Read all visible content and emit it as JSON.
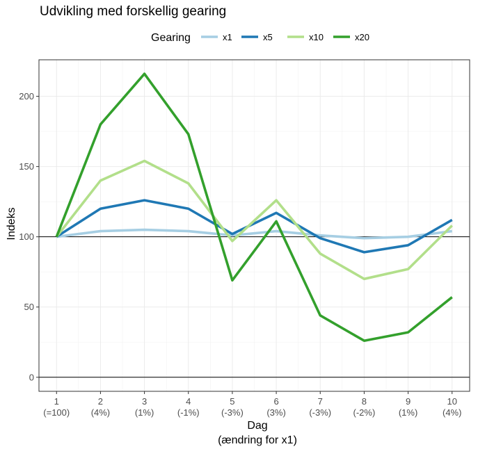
{
  "chart_data": {
    "type": "line",
    "title": "Udvikling med forskellig gearing",
    "xlabel": [
      "Dag",
      "(ændring for x1)"
    ],
    "ylabel": "Indeks",
    "legend": {
      "title": "Gearing",
      "position": "top"
    },
    "x": [
      1,
      2,
      3,
      4,
      5,
      6,
      7,
      8,
      9,
      10
    ],
    "x_tick_labels": [
      [
        "1",
        "(=100)"
      ],
      [
        "2",
        "(4%)"
      ],
      [
        "3",
        "(1%)"
      ],
      [
        "4",
        "(-1%)"
      ],
      [
        "5",
        "(-3%)"
      ],
      [
        "6",
        "(3%)"
      ],
      [
        "7",
        "(-3%)"
      ],
      [
        "8",
        "(-2%)"
      ],
      [
        "9",
        "(1%)"
      ],
      [
        "10",
        "(4%)"
      ]
    ],
    "y_ticks": [
      0,
      50,
      100,
      150,
      200
    ],
    "xlim": [
      0.6,
      10.4
    ],
    "ylim": [
      -10,
      226
    ],
    "reference_lines": [
      0,
      100
    ],
    "grid": true,
    "series": [
      {
        "name": "x1",
        "color": "#a6cee3",
        "values": [
          100,
          104,
          105,
          104,
          101,
          104,
          101,
          99,
          100,
          104
        ]
      },
      {
        "name": "x5",
        "color": "#1f78b4",
        "values": [
          100,
          120,
          126,
          120,
          102,
          117,
          99,
          89,
          94,
          112
        ]
      },
      {
        "name": "x10",
        "color": "#b2df8a",
        "values": [
          100,
          140,
          154,
          138,
          97,
          126,
          88,
          70,
          77,
          108
        ]
      },
      {
        "name": "x20",
        "color": "#33a02c",
        "values": [
          100,
          180,
          216,
          173,
          69,
          111,
          44,
          26,
          32,
          57
        ]
      }
    ]
  }
}
